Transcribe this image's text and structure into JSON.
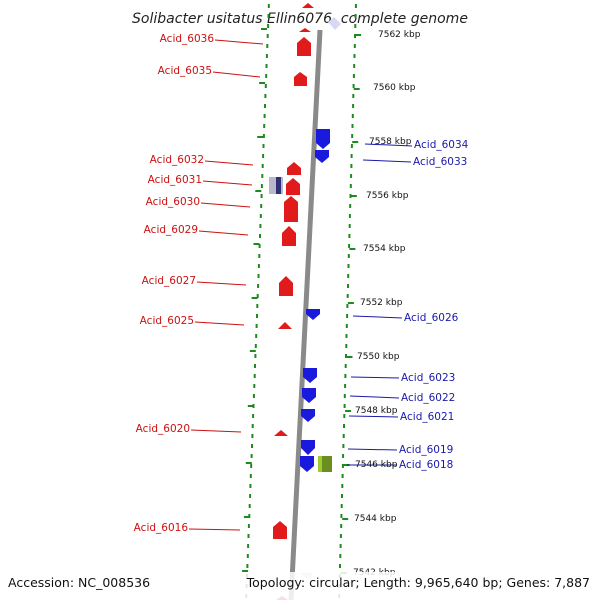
{
  "title": "Solibacter usitatus Ellin6076, complete genome",
  "footer": {
    "accession": "Accession: NC_008536",
    "summary": "Topology: circular; Length: 9,965,640 bp; Genes: 7,887"
  },
  "colors": {
    "forward_gene": "#e11b1b",
    "reverse_gene": "#1a1add",
    "forward_label": "#cc1111",
    "reverse_label": "#1a1aaa",
    "backbone": "#8a8a8a",
    "tick": "#1f8a1f",
    "rna_feature": "#6b8e23"
  },
  "kbp_labels": [
    "7562 kbp",
    "7560 kbp",
    "7558 kbp",
    "7556 kbp",
    "7554 kbp",
    "7552 kbp",
    "7550 kbp",
    "7548 kbp",
    "7546 kbp",
    "7544 kbp",
    "7542 kbp"
  ],
  "forward_genes": [
    "Acid_6036",
    "Acid_6035",
    "Acid_6032",
    "Acid_6031",
    "Acid_6030",
    "Acid_6029",
    "Acid_6027",
    "Acid_6025",
    "Acid_6020",
    "Acid_6016"
  ],
  "reverse_genes": [
    "Acid_6034",
    "Acid_6033",
    "Acid_6026",
    "Acid_6023",
    "Acid_6022",
    "Acid_6021",
    "Acid_6019",
    "Acid_6018"
  ]
}
